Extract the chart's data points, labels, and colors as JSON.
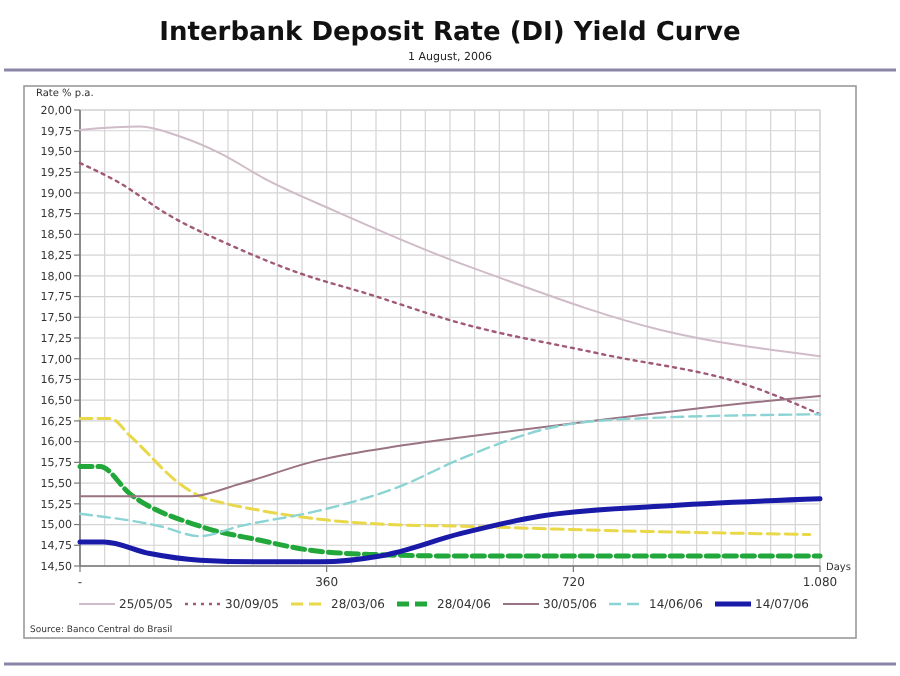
{
  "chart_data": {
    "type": "line",
    "title": "Interbank Deposit Rate (DI) Yield Curve",
    "subtitle": "1 August, 2006",
    "xlabel": "Days",
    "ylabel": "Rate % p.a.",
    "annotations": [
      "Source: Banco Central do Brasil"
    ],
    "xlim": [
      0,
      1080
    ],
    "xticks": [
      {
        "value": 0,
        "label": "-"
      },
      {
        "value": 36,
        "label": null
      },
      {
        "value": 72,
        "label": null
      },
      {
        "value": 108,
        "label": null
      },
      {
        "value": 144,
        "label": null
      },
      {
        "value": 180,
        "label": null
      },
      {
        "value": 216,
        "label": null
      },
      {
        "value": 252,
        "label": null
      },
      {
        "value": 288,
        "label": null
      },
      {
        "value": 324,
        "label": null
      },
      360,
      {
        "value": 396,
        "label": null
      },
      {
        "value": 432,
        "label": null
      },
      {
        "value": 468,
        "label": null
      },
      {
        "value": 504,
        "label": null
      },
      {
        "value": 540,
        "label": null
      },
      {
        "value": 576,
        "label": null
      },
      {
        "value": 612,
        "label": null
      },
      {
        "value": 648,
        "label": null
      },
      {
        "value": 684,
        "label": null
      },
      720,
      {
        "value": 756,
        "label": null
      },
      {
        "value": 792,
        "label": null
      },
      {
        "value": 828,
        "label": null
      },
      {
        "value": 864,
        "label": null
      },
      {
        "value": 900,
        "label": null
      },
      {
        "value": 936,
        "label": null
      },
      {
        "value": 972,
        "label": null
      },
      {
        "value": 1008,
        "label": null
      },
      {
        "value": 1044,
        "label": null
      },
      {
        "value": 1080,
        "label": "1.080"
      }
    ],
    "ylim": [
      14.5,
      20
    ],
    "yticks": [
      {
        "value": 14.5,
        "label": "14,50"
      },
      {
        "value": 14.75,
        "label": "14,75"
      },
      {
        "value": 15,
        "label": "15,00"
      },
      {
        "value": 15.25,
        "label": "15,25"
      },
      {
        "value": 15.5,
        "label": "15,50"
      },
      {
        "value": 15.75,
        "label": "15,75"
      },
      {
        "value": 16,
        "label": "16,00"
      },
      {
        "value": 16.25,
        "label": "16,25"
      },
      {
        "value": 16.5,
        "label": "16,50"
      },
      {
        "value": 16.75,
        "label": "16,75"
      },
      {
        "value": 17,
        "label": "17,00"
      },
      {
        "value": 17.25,
        "label": "17,25"
      },
      {
        "value": 17.5,
        "label": "17,50"
      },
      {
        "value": 17.75,
        "label": "17,75"
      },
      {
        "value": 18,
        "label": "18,00"
      },
      {
        "value": 18.25,
        "label": "18,25"
      },
      {
        "value": 18.5,
        "label": "18,50"
      },
      {
        "value": 18.75,
        "label": "18,75"
      },
      {
        "value": 19,
        "label": "19,00"
      },
      {
        "value": 19.25,
        "label": "19,25"
      },
      {
        "value": 19.5,
        "label": "19,50"
      },
      {
        "value": 19.75,
        "label": "19,75"
      },
      {
        "value": 20,
        "label": "20,00"
      }
    ],
    "grid": true,
    "legend": "bottom",
    "marker": "none",
    "series": [
      {
        "name": "25/05/05",
        "color": "#d0bcc8",
        "line_style": "solid",
        "x": [
          0,
          88,
          146,
          204,
          272,
          370,
          555,
          598,
          846,
          1080
        ],
        "values": [
          19.76,
          19.8,
          19.68,
          19.48,
          19.16,
          18.79,
          18.15,
          18.02,
          17.35,
          17.03
        ]
      },
      {
        "name": "30/09/05",
        "color": "#a05a78",
        "line_style": "dotted",
        "x": [
          0,
          58,
          126,
          225,
          321,
          417,
          555,
          759,
          978,
          1080
        ],
        "values": [
          19.36,
          19.12,
          18.75,
          18.35,
          18.03,
          17.79,
          17.43,
          17.06,
          16.67,
          16.33
        ]
      },
      {
        "name": "28/03/06",
        "color": "#e8d84a",
        "line_style": "dashed",
        "x": [
          0,
          44,
          73,
          146,
          175,
          204,
          263,
          365,
          452,
          555,
          759,
          1065
        ],
        "values": [
          16.28,
          16.28,
          16.07,
          15.49,
          15.34,
          15.27,
          15.17,
          15.05,
          15.0,
          14.98,
          14.93,
          14.88
        ]
      },
      {
        "name": "28/04/06",
        "color": "#22a83a",
        "line_style": "dashed",
        "x": [
          0,
          29,
          73,
          175,
          263,
          336,
          423,
          555,
          1080
        ],
        "values": [
          15.7,
          15.7,
          15.37,
          14.98,
          14.81,
          14.69,
          14.64,
          14.62,
          14.62
        ]
      },
      {
        "name": "30/05/06",
        "color": "#9a7484",
        "line_style": "solid",
        "x": [
          0,
          161,
          233,
          350,
          467,
          555,
          759,
          992,
          1080
        ],
        "values": [
          15.34,
          15.34,
          15.49,
          15.78,
          15.95,
          16.05,
          16.26,
          16.48,
          16.55
        ]
      },
      {
        "name": "14/06/06",
        "color": "#8cd4d4",
        "line_style": "dashed",
        "x": [
          0,
          117,
          175,
          233,
          350,
          467,
          555,
          700,
          817,
          1080
        ],
        "values": [
          15.13,
          14.98,
          14.86,
          14.98,
          15.17,
          15.46,
          15.79,
          16.19,
          16.28,
          16.33
        ]
      },
      {
        "name": "14/07/06",
        "color": "#1a1aa8",
        "line_style": "solid",
        "x": [
          0,
          35,
          102,
          175,
          263,
          350,
          438,
          555,
          671,
          846,
          1080
        ],
        "values": [
          14.79,
          14.79,
          14.65,
          14.57,
          14.55,
          14.55,
          14.62,
          14.89,
          15.1,
          15.22,
          15.31
        ]
      }
    ]
  }
}
